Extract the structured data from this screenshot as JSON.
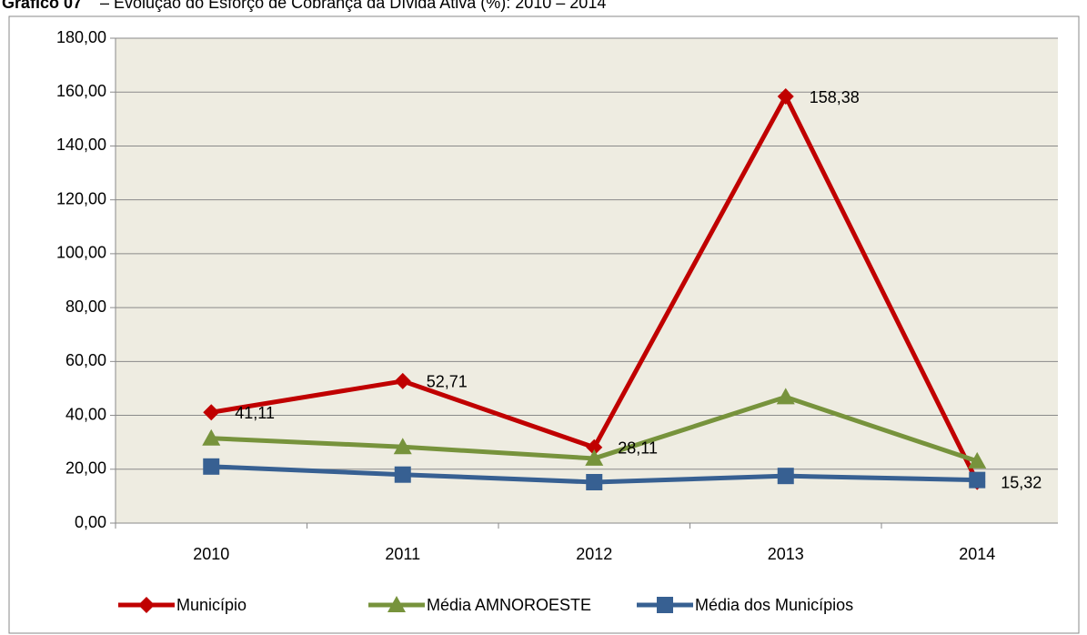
{
  "chart_data": {
    "type": "line",
    "title": "Gráfico 07",
    "subtitle": "– Evolução do Esforço de Cobrança da Dívida Ativa (%): 2010 – 2014",
    "categories": [
      "2010",
      "2011",
      "2012",
      "2013",
      "2014"
    ],
    "series": [
      {
        "name": "Município",
        "color": "#c00000",
        "marker": "diamond",
        "values": [
          41.11,
          52.71,
          28.11,
          158.38,
          15.32
        ],
        "value_labels": [
          "41,11",
          "52,71",
          "28,11",
          "158,38",
          "15,32"
        ]
      },
      {
        "name": "Média AMNOROESTE",
        "color": "#77933c",
        "marker": "triangle",
        "values": [
          31.5,
          28.3,
          24.0,
          46.8,
          23.0
        ]
      },
      {
        "name": "Média dos Municípios",
        "color": "#376092",
        "marker": "square",
        "values": [
          21.0,
          18.0,
          15.2,
          17.5,
          16.0
        ]
      }
    ],
    "ylim": [
      0,
      180
    ],
    "yticks": [
      {
        "value": 0,
        "label": "0,00"
      },
      {
        "value": 20,
        "label": "20,00"
      },
      {
        "value": 40,
        "label": "40,00"
      },
      {
        "value": 60,
        "label": "60,00"
      },
      {
        "value": 80,
        "label": "80,00"
      },
      {
        "value": 100,
        "label": "100,00"
      },
      {
        "value": 120,
        "label": "120,00"
      },
      {
        "value": 140,
        "label": "140,00"
      },
      {
        "value": 160,
        "label": "160,00"
      },
      {
        "value": 180,
        "label": "180,00"
      }
    ],
    "grid": true,
    "legend": "bottom"
  }
}
